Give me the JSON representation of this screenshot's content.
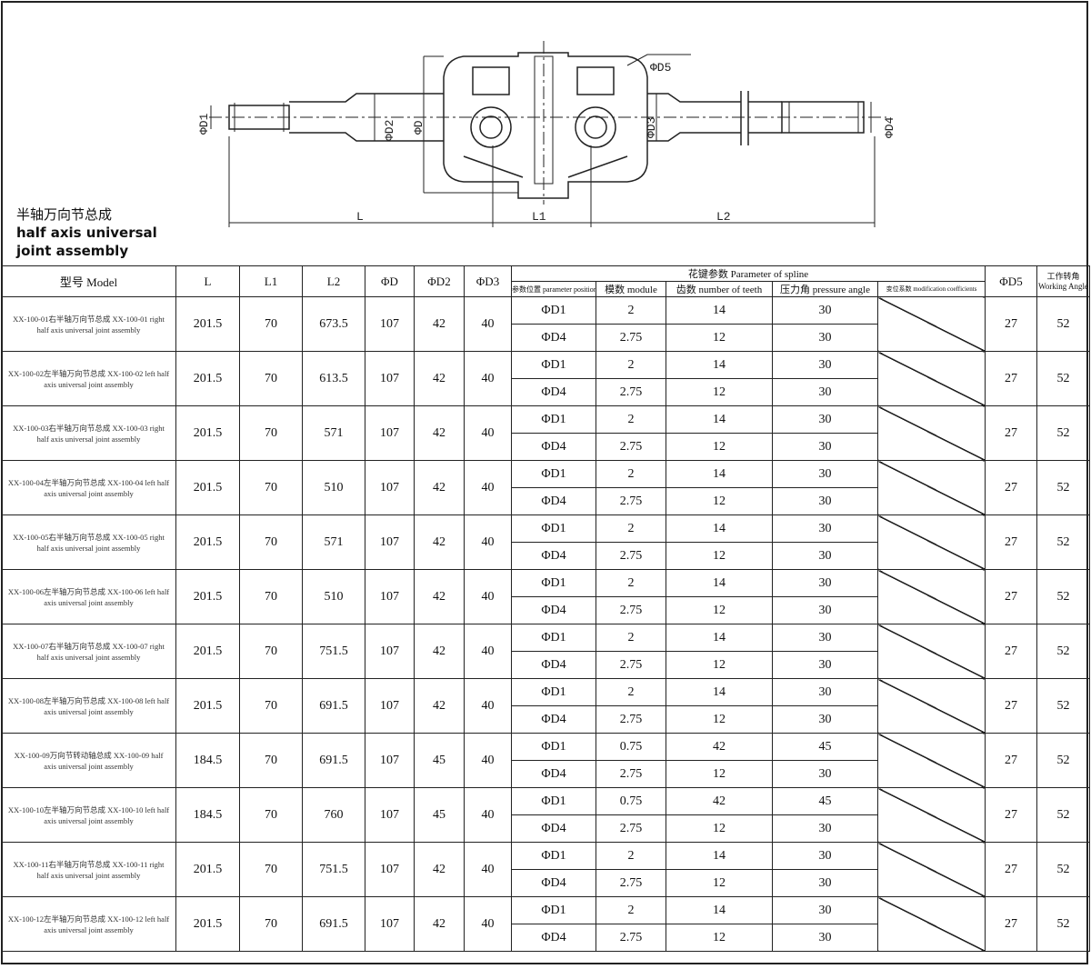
{
  "drawing": {
    "title_cn": "半轴万向节总成",
    "title_en_1": "half axis universal",
    "title_en_2": "joint assembly",
    "labels": {
      "d1": "ΦD1",
      "d2": "ΦD2",
      "d": "ΦD",
      "d5": "ΦD5",
      "d3": "ΦD3",
      "d4": "ΦD4",
      "l": "L",
      "l1": "L1",
      "l2": "L2"
    }
  },
  "table": {
    "headers": {
      "model": "型号 Model",
      "l": "L",
      "l1": "L1",
      "l2": "L2",
      "d": "ΦD",
      "d2": "ΦD2",
      "d3": "ΦD3",
      "spline": "花键参数 Parameter of spline",
      "position": "参数位置 parameter position",
      "module": "模数 module",
      "teeth": "齿数 number of teeth",
      "pressure": "压力角 pressure angle",
      "modification": "变位系数 modification coefficients",
      "d5": "ΦD5",
      "angle_cn": "工作转角",
      "angle_en": "Working Angle"
    },
    "rows": [
      {
        "model": "XX-100-01右半轴万向节总成 XX-100-01 right half axis universal joint assembly",
        "L": "201.5",
        "L1": "70",
        "L2": "673.5",
        "D": "107",
        "D2": "42",
        "D3": "40",
        "splines": [
          {
            "pos": "ΦD1",
            "module": "2",
            "teeth": "14",
            "pressure": "30"
          },
          {
            "pos": "ΦD4",
            "module": "2.75",
            "teeth": "12",
            "pressure": "30"
          }
        ],
        "D5": "27",
        "angle": "52"
      },
      {
        "model": "XX-100-02左半轴万向节总成 XX-100-02 left half axis universal joint assembly",
        "L": "201.5",
        "L1": "70",
        "L2": "613.5",
        "D": "107",
        "D2": "42",
        "D3": "40",
        "splines": [
          {
            "pos": "ΦD1",
            "module": "2",
            "teeth": "14",
            "pressure": "30"
          },
          {
            "pos": "ΦD4",
            "module": "2.75",
            "teeth": "12",
            "pressure": "30"
          }
        ],
        "D5": "27",
        "angle": "52"
      },
      {
        "model": "XX-100-03右半轴万向节总成 XX-100-03 right half axis universal joint assembly",
        "L": "201.5",
        "L1": "70",
        "L2": "571",
        "D": "107",
        "D2": "42",
        "D3": "40",
        "splines": [
          {
            "pos": "ΦD1",
            "module": "2",
            "teeth": "14",
            "pressure": "30"
          },
          {
            "pos": "ΦD4",
            "module": "2.75",
            "teeth": "12",
            "pressure": "30"
          }
        ],
        "D5": "27",
        "angle": "52"
      },
      {
        "model": "XX-100-04左半轴万向节总成 XX-100-04 left half axis universal joint assembly",
        "L": "201.5",
        "L1": "70",
        "L2": "510",
        "D": "107",
        "D2": "42",
        "D3": "40",
        "splines": [
          {
            "pos": "ΦD1",
            "module": "2",
            "teeth": "14",
            "pressure": "30"
          },
          {
            "pos": "ΦD4",
            "module": "2.75",
            "teeth": "12",
            "pressure": "30"
          }
        ],
        "D5": "27",
        "angle": "52"
      },
      {
        "model": "XX-100-05右半轴万向节总成 XX-100-05 right half axis universal joint assembly",
        "L": "201.5",
        "L1": "70",
        "L2": "571",
        "D": "107",
        "D2": "42",
        "D3": "40",
        "splines": [
          {
            "pos": "ΦD1",
            "module": "2",
            "teeth": "14",
            "pressure": "30"
          },
          {
            "pos": "ΦD4",
            "module": "2.75",
            "teeth": "12",
            "pressure": "30"
          }
        ],
        "D5": "27",
        "angle": "52"
      },
      {
        "model": "XX-100-06左半轴万向节总成 XX-100-06 left half axis universal joint assembly",
        "L": "201.5",
        "L1": "70",
        "L2": "510",
        "D": "107",
        "D2": "42",
        "D3": "40",
        "splines": [
          {
            "pos": "ΦD1",
            "module": "2",
            "teeth": "14",
            "pressure": "30"
          },
          {
            "pos": "ΦD4",
            "module": "2.75",
            "teeth": "12",
            "pressure": "30"
          }
        ],
        "D5": "27",
        "angle": "52"
      },
      {
        "model": "XX-100-07右半轴万向节总成 XX-100-07 right half axis universal joint assembly",
        "L": "201.5",
        "L1": "70",
        "L2": "751.5",
        "D": "107",
        "D2": "42",
        "D3": "40",
        "splines": [
          {
            "pos": "ΦD1",
            "module": "2",
            "teeth": "14",
            "pressure": "30"
          },
          {
            "pos": "ΦD4",
            "module": "2.75",
            "teeth": "12",
            "pressure": "30"
          }
        ],
        "D5": "27",
        "angle": "52"
      },
      {
        "model": "XX-100-08左半轴万向节总成 XX-100-08 left half axis universal joint assembly",
        "L": "201.5",
        "L1": "70",
        "L2": "691.5",
        "D": "107",
        "D2": "42",
        "D3": "40",
        "splines": [
          {
            "pos": "ΦD1",
            "module": "2",
            "teeth": "14",
            "pressure": "30"
          },
          {
            "pos": "ΦD4",
            "module": "2.75",
            "teeth": "12",
            "pressure": "30"
          }
        ],
        "D5": "27",
        "angle": "52"
      },
      {
        "model": "XX-100-09万向节转动轴总成 XX-100-09 half axis universal joint assembly",
        "L": "184.5",
        "L1": "70",
        "L2": "691.5",
        "D": "107",
        "D2": "45",
        "D3": "40",
        "splines": [
          {
            "pos": "ΦD1",
            "module": "0.75",
            "teeth": "42",
            "pressure": "45"
          },
          {
            "pos": "ΦD4",
            "module": "2.75",
            "teeth": "12",
            "pressure": "30"
          }
        ],
        "D5": "27",
        "angle": "52"
      },
      {
        "model": "XX-100-10左半轴万向节总成 XX-100-10 left half axis universal joint assembly",
        "L": "184.5",
        "L1": "70",
        "L2": "760",
        "D": "107",
        "D2": "45",
        "D3": "40",
        "splines": [
          {
            "pos": "ΦD1",
            "module": "0.75",
            "teeth": "42",
            "pressure": "45"
          },
          {
            "pos": "ΦD4",
            "module": "2.75",
            "teeth": "12",
            "pressure": "30"
          }
        ],
        "D5": "27",
        "angle": "52"
      },
      {
        "model": "XX-100-11右半轴万向节总成 XX-100-11 right half axis universal joint assembly",
        "L": "201.5",
        "L1": "70",
        "L2": "751.5",
        "D": "107",
        "D2": "42",
        "D3": "40",
        "splines": [
          {
            "pos": "ΦD1",
            "module": "2",
            "teeth": "14",
            "pressure": "30"
          },
          {
            "pos": "ΦD4",
            "module": "2.75",
            "teeth": "12",
            "pressure": "30"
          }
        ],
        "D5": "27",
        "angle": "52"
      },
      {
        "model": "XX-100-12左半轴万向节总成 XX-100-12 left half axis universal joint assembly",
        "L": "201.5",
        "L1": "70",
        "L2": "691.5",
        "D": "107",
        "D2": "42",
        "D3": "40",
        "splines": [
          {
            "pos": "ΦD1",
            "module": "2",
            "teeth": "14",
            "pressure": "30"
          },
          {
            "pos": "ΦD4",
            "module": "2.75",
            "teeth": "12",
            "pressure": "30"
          }
        ],
        "D5": "27",
        "angle": "52"
      }
    ]
  }
}
